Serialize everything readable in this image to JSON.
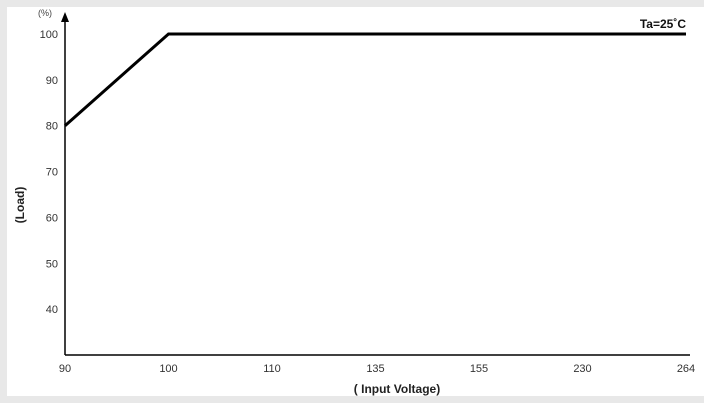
{
  "chart_data": {
    "type": "line",
    "title": "",
    "xlabel": "( Input Voltage)",
    "ylabel": "(Load)",
    "y_unit": "(%)",
    "annotation": "Ta=25˚C",
    "categories": [
      "90",
      "100",
      "110",
      "135",
      "155",
      "230",
      "264"
    ],
    "ylim": [
      30,
      100
    ],
    "yticks": [
      40,
      50,
      60,
      70,
      80,
      90,
      100
    ],
    "grid": false,
    "series": [
      {
        "values": [
          80,
          100,
          100,
          100,
          100,
          100,
          100
        ]
      }
    ]
  }
}
